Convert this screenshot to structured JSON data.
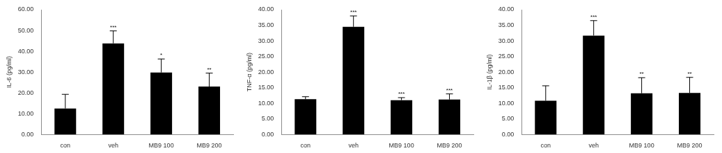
{
  "chart_data": [
    {
      "type": "bar",
      "y_label": "IL-6 (pg/ml)",
      "categories": [
        "con",
        "veh",
        "MB9 100",
        "MB9 200"
      ],
      "values": [
        12.5,
        43.8,
        29.8,
        23.0
      ],
      "errors": [
        6.8,
        6.0,
        6.5,
        6.5
      ],
      "significance": [
        null,
        "***",
        "*",
        "**"
      ],
      "color": "#000000",
      "ylim": [
        0,
        60
      ],
      "yticks": [
        {
          "value": 0,
          "label": "0.00"
        },
        {
          "value": 10,
          "label": "10.00"
        },
        {
          "value": 20,
          "label": "20.00"
        },
        {
          "value": 30,
          "label": "30.00"
        },
        {
          "value": 40,
          "label": "40.00"
        },
        {
          "value": 50,
          "label": "50.00"
        },
        {
          "value": 60,
          "label": "60.00"
        }
      ],
      "grid": false
    },
    {
      "type": "bar",
      "y_label": "TNF-α (pg/ml)",
      "categories": [
        "con",
        "veh",
        "MB9 100",
        "MB9 200"
      ],
      "values": [
        11.3,
        34.5,
        11.0,
        11.2
      ],
      "errors": [
        0.8,
        3.5,
        0.8,
        1.8
      ],
      "significance": [
        null,
        "***",
        "***",
        "***"
      ],
      "color": "#000000",
      "ylim": [
        0,
        40
      ],
      "yticks": [
        {
          "value": 0,
          "label": "0.00"
        },
        {
          "value": 5,
          "label": "5.00"
        },
        {
          "value": 10,
          "label": "10.00"
        },
        {
          "value": 15,
          "label": "15.00"
        },
        {
          "value": 20,
          "label": "20.00"
        },
        {
          "value": 25,
          "label": "25.00"
        },
        {
          "value": 30,
          "label": "30.00"
        },
        {
          "value": 35,
          "label": "35.00"
        },
        {
          "value": 40,
          "label": "40.00"
        }
      ],
      "grid": false
    },
    {
      "type": "bar",
      "y_label": "IL-1β (pg/ml)",
      "categories": [
        "con",
        "veh",
        "MB9 100",
        "MB9 200"
      ],
      "values": [
        10.8,
        31.7,
        13.2,
        13.3
      ],
      "errors": [
        4.8,
        4.8,
        5.0,
        5.0
      ],
      "significance": [
        null,
        "***",
        "**",
        "**"
      ],
      "color": "#000000",
      "ylim": [
        0,
        40
      ],
      "yticks": [
        {
          "value": 0,
          "label": "0.00"
        },
        {
          "value": 5,
          "label": "5.00"
        },
        {
          "value": 10,
          "label": "10.00"
        },
        {
          "value": 15,
          "label": "15.00"
        },
        {
          "value": 20,
          "label": "20.00"
        },
        {
          "value": 25,
          "label": "25.00"
        },
        {
          "value": 30,
          "label": "30.00"
        },
        {
          "value": 35,
          "label": "35.00"
        },
        {
          "value": 40,
          "label": "40.00"
        }
      ],
      "grid": false
    }
  ]
}
